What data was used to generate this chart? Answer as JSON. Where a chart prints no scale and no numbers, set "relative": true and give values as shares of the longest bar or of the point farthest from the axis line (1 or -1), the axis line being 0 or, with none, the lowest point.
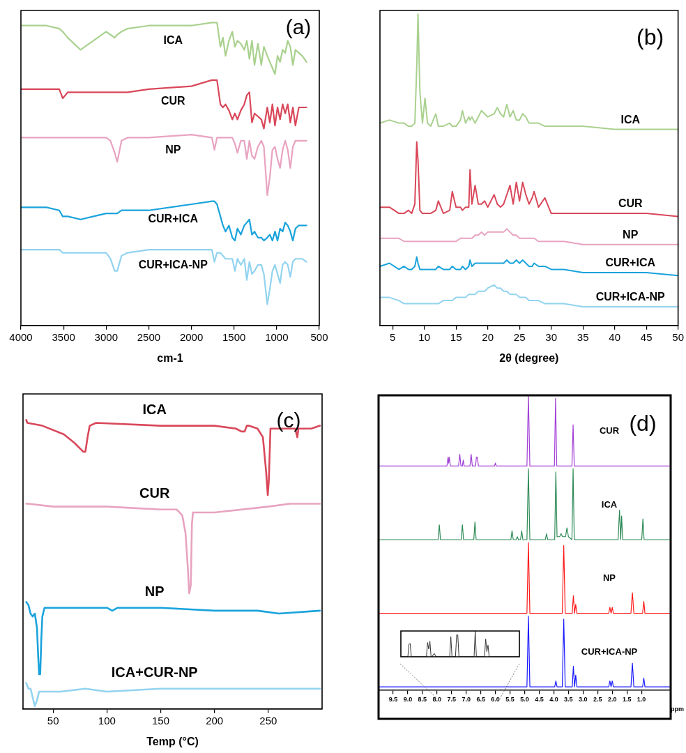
{
  "chart_data": [
    {
      "type": "line",
      "relative": true,
      "xlabel": "cm-1",
      "xlim": [
        4000,
        500
      ],
      "xticks": [
        4000,
        3500,
        3000,
        2500,
        2000,
        1500,
        1000,
        500
      ],
      "annotations": [
        "(a)"
      ],
      "x": [
        4000,
        3700,
        3550,
        3510,
        3450,
        3300,
        3150,
        3000,
        2950,
        2900,
        2870,
        2820,
        2750,
        2500,
        2000,
        1760,
        1730,
        1700,
        1660,
        1630,
        1600,
        1560,
        1520,
        1490,
        1460,
        1420,
        1380,
        1350,
        1320,
        1290,
        1260,
        1220,
        1180,
        1150,
        1110,
        1080,
        1050,
        1020,
        990,
        960,
        930,
        900,
        870,
        840,
        810,
        780,
        740,
        700,
        650
      ],
      "series": [
        {
          "name": "ICA",
          "color": "#a9d18e",
          "values": [
            0.99,
            0.99,
            0.98,
            0.97,
            0.95,
            0.91,
            0.94,
            0.97,
            0.96,
            0.95,
            0.96,
            0.97,
            0.98,
            0.99,
            0.99,
            1,
            1,
            1,
            0.92,
            0.95,
            0.89,
            0.94,
            0.97,
            0.92,
            0.94,
            0.93,
            0.91,
            0.94,
            0.88,
            0.94,
            0.86,
            0.93,
            0.86,
            0.92,
            0.89,
            0.87,
            0.85,
            0.83,
            0.89,
            0.87,
            0.91,
            0.9,
            0.94,
            0.92,
            0.86,
            0.91,
            0.9,
            0.89,
            0.87
          ]
        },
        {
          "name": "CUR",
          "color": "#d9485a",
          "values": [
            0.78,
            0.78,
            0.78,
            0.75,
            0.77,
            0.77,
            0.77,
            0.77,
            0.77,
            0.77,
            0.77,
            0.77,
            0.77,
            0.78,
            0.79,
            0.81,
            0.81,
            0.81,
            0.73,
            0.72,
            0.73,
            0.71,
            0.68,
            0.7,
            0.68,
            0.71,
            0.73,
            0.76,
            0.77,
            0.67,
            0.7,
            0.69,
            0.68,
            0.65,
            0.72,
            0.67,
            0.73,
            0.66,
            0.72,
            0.68,
            0.73,
            0.7,
            0.73,
            0.67,
            0.72,
            0.66,
            0.72,
            0.72,
            0.72
          ]
        },
        {
          "name": "NP",
          "color": "#e8a3c0",
          "values": [
            0.62,
            0.62,
            0.62,
            0.62,
            0.62,
            0.62,
            0.62,
            0.62,
            0.61,
            0.57,
            0.54,
            0.61,
            0.62,
            0.62,
            0.63,
            0.62,
            0.58,
            0.62,
            0.62,
            0.62,
            0.62,
            0.62,
            0.62,
            0.6,
            0.57,
            0.61,
            0.61,
            0.55,
            0.61,
            0.56,
            0.55,
            0.59,
            0.61,
            0.59,
            0.43,
            0.49,
            0.58,
            0.59,
            0.55,
            0.52,
            0.58,
            0.61,
            0.58,
            0.52,
            0.59,
            0.61,
            0.61,
            0.61,
            0.61
          ]
        },
        {
          "name": "CUR+ICA",
          "color": "#1aa3dc",
          "values": [
            0.39,
            0.39,
            0.38,
            0.36,
            0.36,
            0.35,
            0.36,
            0.37,
            0.37,
            0.37,
            0.37,
            0.38,
            0.38,
            0.38,
            0.4,
            0.41,
            0.41,
            0.4,
            0.36,
            0.33,
            0.31,
            0.33,
            0.29,
            0.28,
            0.32,
            0.3,
            0.33,
            0.34,
            0.35,
            0.3,
            0.31,
            0.29,
            0.29,
            0.28,
            0.29,
            0.3,
            0.28,
            0.31,
            0.28,
            0.32,
            0.31,
            0.34,
            0.33,
            0.31,
            0.28,
            0.32,
            0.33,
            0.33,
            0.33
          ]
        },
        {
          "name": "CUR+ICA-NP",
          "color": "#92d3f0",
          "values": [
            0.25,
            0.25,
            0.25,
            0.24,
            0.24,
            0.24,
            0.24,
            0.24,
            0.22,
            0.18,
            0.18,
            0.23,
            0.24,
            0.25,
            0.25,
            0.25,
            0.21,
            0.24,
            0.24,
            0.23,
            0.22,
            0.22,
            0.22,
            0.18,
            0.22,
            0.2,
            0.22,
            0.15,
            0.21,
            0.17,
            0.18,
            0.2,
            0.2,
            0.17,
            0.07,
            0.12,
            0.18,
            0.2,
            0.17,
            0.14,
            0.2,
            0.21,
            0.2,
            0.16,
            0.21,
            0.22,
            0.22,
            0.22,
            0.21
          ]
        }
      ]
    },
    {
      "type": "line",
      "relative": true,
      "xlabel": "2θ (degree)",
      "xlim": [
        3,
        50
      ],
      "xticks": [
        5,
        10,
        15,
        20,
        25,
        30,
        35,
        40,
        45,
        50
      ],
      "annotations": [
        "(b)"
      ],
      "x": [
        3,
        4.5,
        6,
        6.8,
        7.5,
        8,
        8.5,
        8.8,
        9,
        9.3,
        9.7,
        10.1,
        10.5,
        11,
        11.8,
        12.2,
        13,
        14,
        14.4,
        15,
        15.7,
        16,
        16.5,
        17,
        17.2,
        17.5,
        18,
        18.5,
        19,
        19.5,
        20,
        21,
        21.5,
        22,
        22.5,
        23,
        23.5,
        24,
        24.5,
        25,
        25.5,
        26,
        26.5,
        27,
        27.3,
        28,
        29,
        30,
        32,
        35,
        40,
        45,
        50
      ],
      "series": [
        {
          "name": "ICA",
          "color": "#a9d18e",
          "values": [
            0.65,
            0.66,
            0.65,
            0.65,
            0.64,
            0.64,
            0.65,
            0.83,
            1,
            0.75,
            0.65,
            0.73,
            0.65,
            0.64,
            0.68,
            0.64,
            0.64,
            0.65,
            0.64,
            0.64,
            0.66,
            0.69,
            0.65,
            0.67,
            0.66,
            0.67,
            0.65,
            0.67,
            0.69,
            0.68,
            0.67,
            0.68,
            0.7,
            0.68,
            0.67,
            0.71,
            0.67,
            0.69,
            0.66,
            0.66,
            0.68,
            0.67,
            0.65,
            0.65,
            0.65,
            0.65,
            0.64,
            0.64,
            0.64,
            0.64,
            0.63,
            0.63,
            0.63
          ]
        },
        {
          "name": "CUR",
          "color": "#d9485a",
          "values": [
            0.38,
            0.38,
            0.36,
            0.36,
            0.37,
            0.36,
            0.39,
            0.59,
            0.53,
            0.37,
            0.36,
            0.36,
            0.36,
            0.36,
            0.37,
            0.4,
            0.36,
            0.37,
            0.43,
            0.38,
            0.38,
            0.37,
            0.38,
            0.38,
            0.5,
            0.39,
            0.45,
            0.39,
            0.39,
            0.4,
            0.38,
            0.42,
            0.39,
            0.38,
            0.39,
            0.42,
            0.45,
            0.39,
            0.46,
            0.4,
            0.46,
            0.42,
            0.39,
            0.41,
            0.43,
            0.38,
            0.41,
            0.36,
            0.36,
            0.36,
            0.36,
            0.36,
            0.35
          ]
        },
        {
          "name": "NP",
          "color": "#e8a3c0",
          "values": [
            0.28,
            0.28,
            0.28,
            0.27,
            0.27,
            0.27,
            0.27,
            0.27,
            0.27,
            0.27,
            0.27,
            0.27,
            0.27,
            0.27,
            0.27,
            0.27,
            0.27,
            0.27,
            0.27,
            0.27,
            0.28,
            0.28,
            0.28,
            0.28,
            0.28,
            0.28,
            0.29,
            0.29,
            0.3,
            0.29,
            0.3,
            0.3,
            0.3,
            0.3,
            0.3,
            0.31,
            0.3,
            0.29,
            0.29,
            0.28,
            0.28,
            0.28,
            0.28,
            0.28,
            0.28,
            0.27,
            0.27,
            0.27,
            0.27,
            0.26,
            0.26,
            0.26,
            0.26
          ]
        },
        {
          "name": "CUR+ICA",
          "color": "#1aa3dc",
          "values": [
            0.19,
            0.2,
            0.18,
            0.19,
            0.18,
            0.18,
            0.19,
            0.22,
            0.2,
            0.18,
            0.18,
            0.18,
            0.18,
            0.18,
            0.18,
            0.19,
            0.18,
            0.18,
            0.19,
            0.18,
            0.18,
            0.19,
            0.18,
            0.19,
            0.21,
            0.19,
            0.2,
            0.2,
            0.2,
            0.2,
            0.2,
            0.2,
            0.2,
            0.2,
            0.2,
            0.21,
            0.2,
            0.2,
            0.21,
            0.2,
            0.21,
            0.2,
            0.19,
            0.19,
            0.2,
            0.19,
            0.19,
            0.18,
            0.18,
            0.17,
            0.17,
            0.17,
            0.16
          ]
        },
        {
          "name": "CUR+ICA-NP",
          "color": "#92d3f0",
          "values": [
            0.09,
            0.09,
            0.08,
            0.07,
            0.07,
            0.07,
            0.07,
            0.07,
            0.07,
            0.07,
            0.07,
            0.07,
            0.07,
            0.07,
            0.07,
            0.07,
            0.08,
            0.08,
            0.08,
            0.09,
            0.09,
            0.09,
            0.09,
            0.1,
            0.1,
            0.1,
            0.1,
            0.11,
            0.11,
            0.11,
            0.12,
            0.13,
            0.12,
            0.12,
            0.11,
            0.11,
            0.1,
            0.1,
            0.1,
            0.09,
            0.09,
            0.09,
            0.08,
            0.08,
            0.08,
            0.08,
            0.07,
            0.07,
            0.07,
            0.06,
            0.06,
            0.06,
            0.06
          ]
        }
      ]
    },
    {
      "type": "line",
      "relative": true,
      "xlabel": "Temp (°C)",
      "xlim": [
        22,
        300
      ],
      "xticks": [
        50,
        100,
        150,
        200,
        250
      ],
      "annotations": [
        "(c)"
      ],
      "series": [
        {
          "name": "ICA",
          "color": "#d9485a",
          "x": [
            25,
            26,
            40,
            60,
            70,
            78,
            80,
            82,
            84,
            90,
            150,
            200,
            220,
            225,
            228,
            230,
            232,
            240,
            245,
            248,
            249.5,
            250.5,
            252,
            254,
            270,
            275,
            277,
            278,
            290,
            298
          ],
          "values": [
            1,
            0.99,
            0.98,
            0.95,
            0.92,
            0.89,
            0.89,
            0.94,
            0.98,
            0.99,
            0.98,
            0.98,
            0.97,
            0.96,
            0.96,
            0.98,
            0.98,
            0.97,
            0.94,
            0.82,
            0.74,
            0.79,
            0.97,
            0.97,
            0.97,
            0.97,
            0.94,
            0.97,
            0.97,
            0.98
          ]
        },
        {
          "name": "CUR",
          "color": "#e8a3c0",
          "x": [
            25,
            27,
            50,
            100,
            150,
            165,
            170,
            173,
            175,
            176.5,
            178,
            179,
            180,
            200,
            250,
            270,
            285,
            298
          ],
          "values": [
            0.71,
            0.71,
            0.7,
            0.7,
            0.69,
            0.69,
            0.67,
            0.61,
            0.5,
            0.4,
            0.43,
            0.64,
            0.68,
            0.68,
            0.7,
            0.71,
            0.71,
            0.71
          ]
        },
        {
          "name": "NP",
          "color": "#1aa3dc",
          "x": [
            25,
            27,
            29,
            31,
            33,
            35,
            36,
            37,
            38,
            39,
            40,
            42,
            45,
            80,
            100,
            105,
            110,
            150,
            200,
            240,
            260,
            298
          ],
          "values": [
            0.37,
            0.36,
            0.33,
            0.32,
            0.33,
            0.28,
            0.19,
            0.12,
            0.12,
            0.24,
            0.32,
            0.35,
            0.35,
            0.35,
            0.35,
            0.34,
            0.35,
            0.35,
            0.34,
            0.34,
            0.33,
            0.34
          ]
        },
        {
          "name": "ICA+CUR-NP",
          "color": "#92d3f0",
          "x": [
            25,
            27,
            29,
            31,
            33,
            35,
            37,
            40,
            57,
            80,
            100,
            150,
            200,
            250,
            298
          ],
          "values": [
            0.09,
            0.07,
            0.07,
            0.04,
            0.01,
            0.03,
            0.06,
            0.06,
            0.06,
            0.07,
            0.06,
            0.07,
            0.07,
            0.07,
            0.07
          ]
        }
      ]
    },
    {
      "type": "line",
      "relative": true,
      "xlabel": "ppm",
      "xlim": [
        10,
        0
      ],
      "xticks": [
        9.5,
        {
          "value": 9,
          "label": "9.0"
        },
        8.5,
        {
          "value": 8,
          "label": "8.0"
        },
        7.5,
        {
          "value": 7,
          "label": "7.0"
        },
        6.5,
        {
          "value": 6,
          "label": "6.0"
        },
        5.5,
        {
          "value": 5,
          "label": "5.0"
        },
        4.5,
        {
          "value": 4,
          "label": "4.0"
        },
        3.5,
        {
          "value": 3,
          "label": "3.0"
        },
        2.5,
        {
          "value": 2,
          "label": "2.0"
        },
        1.5,
        {
          "value": 1,
          "label": "1.0"
        }
      ],
      "annotations": [
        "(d)"
      ],
      "series": [
        {
          "name": "CUR",
          "color": "#a23fd6",
          "x": [
            10,
            7.66,
            7.62,
            7.6,
            7.58,
            7.54,
            7.26,
            7.22,
            7.18,
            7.13,
            7.1,
            7.07,
            6.87,
            6.83,
            6.79,
            6.68,
            6.65,
            6.62,
            6.58,
            6.03,
            6.0,
            5.97,
            4.92,
            4.87,
            4.82,
            3.98,
            3.94,
            3.9,
            3.38,
            3.34,
            3.3,
            0
          ],
          "values": [
            0.76,
            0.76,
            0.79,
            0.77,
            0.79,
            0.76,
            0.76,
            0.8,
            0.76,
            0.76,
            0.78,
            0.76,
            0.76,
            0.8,
            0.76,
            0.76,
            0.79,
            0.79,
            0.76,
            0.76,
            0.77,
            0.76,
            0.76,
            1,
            0.76,
            0.76,
            0.99,
            0.76,
            0.76,
            0.9,
            0.76,
            0.76
          ]
        },
        {
          "name": "ICA",
          "color": "#2e8b57",
          "x": [
            10,
            7.96,
            7.92,
            7.88,
            7.17,
            7.13,
            7.09,
            6.74,
            6.7,
            6.66,
            5.47,
            5.43,
            5.39,
            5.29,
            5.25,
            5.21,
            5.14,
            5.1,
            5.06,
            4.92,
            4.87,
            4.82,
            4.29,
            4.25,
            4.21,
            3.97,
            3.93,
            3.89,
            3.8,
            3.75,
            3.7,
            3.6,
            3.55,
            3.5,
            3.38,
            3.34,
            3.3,
            1.8,
            1.75,
            1.71,
            1.68,
            1.64,
            0.99,
            0.95,
            0.91,
            0
          ],
          "values": [
            0.51,
            0.51,
            0.56,
            0.51,
            0.51,
            0.56,
            0.51,
            0.51,
            0.57,
            0.51,
            0.51,
            0.54,
            0.51,
            0.51,
            0.52,
            0.51,
            0.51,
            0.54,
            0.51,
            0.51,
            0.75,
            0.51,
            0.51,
            0.53,
            0.51,
            0.51,
            0.74,
            0.52,
            0.52,
            0.53,
            0.52,
            0.52,
            0.55,
            0.52,
            0.51,
            0.75,
            0.51,
            0.51,
            0.61,
            0.51,
            0.59,
            0.51,
            0.51,
            0.58,
            0.51,
            0.51
          ]
        },
        {
          "name": "NP",
          "color": "#ff1a1a",
          "x": [
            10,
            4.92,
            4.87,
            4.82,
            3.71,
            3.66,
            3.61,
            3.37,
            3.33,
            3.29,
            3.25,
            3.21,
            2.12,
            2.08,
            2.04,
            2.0,
            1.96,
            1.36,
            1.31,
            1.26,
            0.96,
            0.92,
            0.88,
            0
          ],
          "values": [
            0.26,
            0.26,
            0.5,
            0.26,
            0.26,
            0.49,
            0.26,
            0.26,
            0.32,
            0.26,
            0.29,
            0.26,
            0.26,
            0.28,
            0.26,
            0.28,
            0.26,
            0.26,
            0.33,
            0.26,
            0.26,
            0.3,
            0.26,
            0.26
          ]
        },
        {
          "name": "CUR+ICA-NP",
          "color": "#1a1aff",
          "x": [
            10,
            4.92,
            4.87,
            4.82,
            3.97,
            3.93,
            3.89,
            3.71,
            3.66,
            3.61,
            3.37,
            3.33,
            3.29,
            3.25,
            3.21,
            2.12,
            2.08,
            2.04,
            2.0,
            1.96,
            1.36,
            1.31,
            1.26,
            0.96,
            0.92,
            0.88,
            0
          ],
          "values": [
            0.01,
            0.01,
            0.25,
            0.01,
            0.01,
            0.03,
            0.01,
            0.01,
            0.24,
            0.01,
            0.01,
            0.08,
            0.01,
            0.05,
            0.01,
            0.01,
            0.03,
            0.01,
            0.03,
            0.01,
            0.01,
            0.09,
            0.01,
            0.01,
            0.04,
            0.01,
            0.01
          ]
        }
      ]
    },
    {
      "type": "line",
      "relative": true,
      "tick_labels": false,
      "categories": [
        null,
        null,
        null,
        null,
        null,
        null,
        null,
        null,
        null,
        null,
        null,
        null,
        null,
        null,
        null,
        null,
        null,
        null,
        null,
        null,
        null,
        null,
        null,
        null,
        null,
        null,
        null,
        null,
        null,
        null,
        null,
        null,
        null,
        null,
        null,
        null,
        null,
        null,
        null,
        null,
        null,
        null,
        null,
        null,
        null,
        null,
        null,
        null,
        null,
        null,
        null,
        null,
        null,
        null,
        null,
        null,
        null,
        null,
        null,
        null,
        null,
        null,
        null,
        null,
        null,
        null,
        null,
        null,
        null,
        null,
        null,
        null,
        null,
        null,
        null,
        null,
        null,
        null,
        null,
        null,
        null,
        null,
        null,
        null,
        null,
        null,
        null,
        null,
        null,
        null,
        null,
        null,
        null,
        null,
        null,
        null,
        null,
        null,
        null,
        null,
        null,
        null,
        null
      ],
      "series": [
        {
          "color": "#333333",
          "values": [
            0,
            0,
            0,
            0,
            0,
            0,
            0,
            0.49,
            0.51,
            0,
            0,
            0,
            0,
            0,
            0,
            0,
            0,
            0,
            0,
            0,
            0,
            0,
            0,
            0.55,
            0.3,
            0.6,
            0,
            0,
            0.1,
            0.12,
            0,
            0,
            0,
            0,
            0,
            0,
            0,
            0,
            0,
            0,
            0,
            0,
            0,
            0.78,
            0,
            0,
            0,
            0,
            0.85,
            0.85,
            0,
            0,
            0,
            0,
            0,
            0,
            0,
            0,
            0,
            0,
            0,
            0,
            0,
            0,
            1,
            0,
            0,
            0,
            0,
            0,
            0,
            0,
            0,
            0.69,
            0.2,
            0.45,
            0,
            0,
            0,
            0,
            0,
            0,
            0,
            0,
            0,
            0,
            0,
            0,
            0,
            0,
            0,
            0,
            0,
            0,
            0,
            0,
            0,
            0,
            0,
            0,
            0,
            0,
            0
          ]
        }
      ]
    }
  ]
}
